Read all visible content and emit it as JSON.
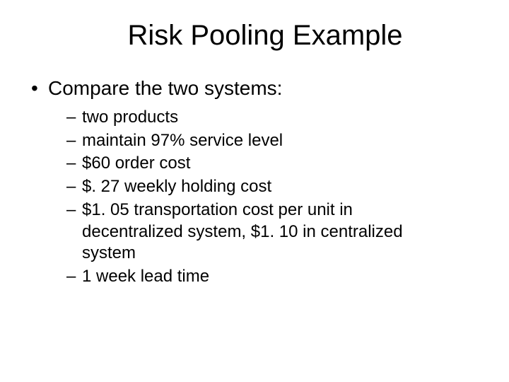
{
  "title": "Risk Pooling Example",
  "intro": "Compare the two systems:",
  "items": [
    "two products",
    "maintain 97% service level",
    "$60 order cost",
    "$. 27 weekly holding cost",
    "$1. 05 transportation cost per unit in decentralized system, $1. 10 in centralized system",
    "1 week lead time"
  ],
  "style": {
    "background_color": "#ffffff",
    "text_color": "#000000",
    "title_fontsize": 40,
    "l1_fontsize": 28,
    "l2_fontsize": 24,
    "font_family": "Arial"
  }
}
